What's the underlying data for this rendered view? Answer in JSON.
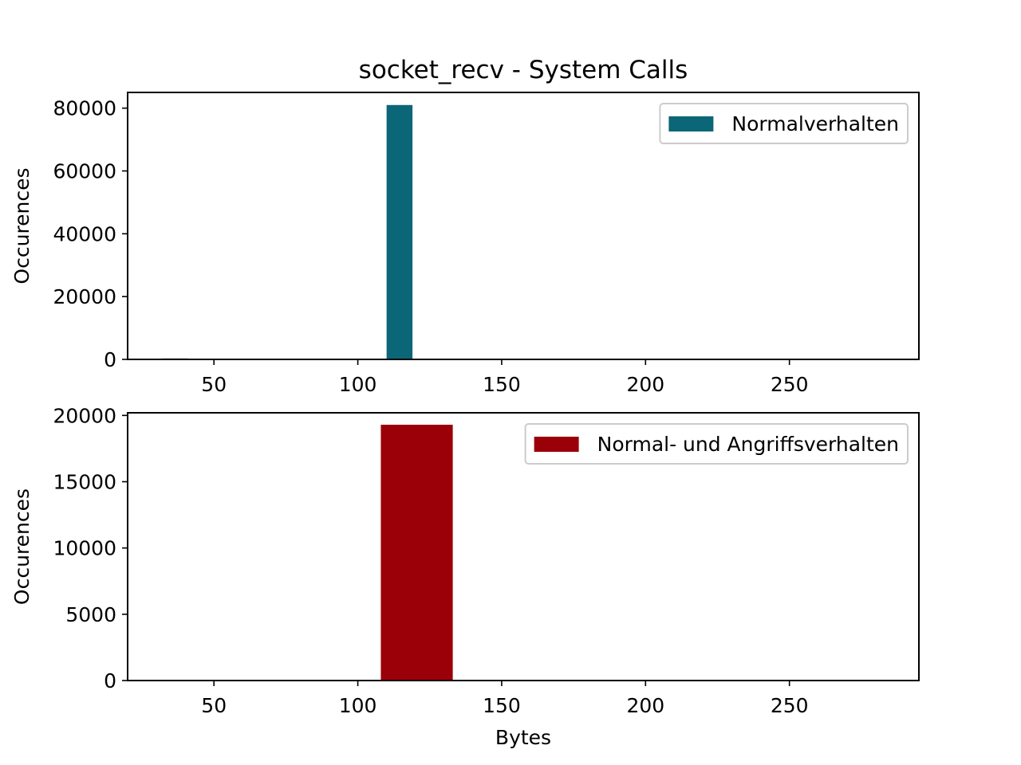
{
  "figure": {
    "title": "socket_recv - System Calls"
  },
  "chart_data": [
    {
      "type": "bar",
      "title": "socket_recv - System Calls",
      "xlabel": "",
      "ylabel": "Occurences",
      "xlim": [
        20,
        295
      ],
      "ylim": [
        0,
        85000
      ],
      "xticks": [
        50,
        100,
        150,
        200,
        250
      ],
      "yticks": [
        0,
        20000,
        40000,
        60000,
        80000
      ],
      "grid": false,
      "legend_position": "top-right",
      "series": [
        {
          "name": "Normalverhalten",
          "color": "#0b6677",
          "bins": [
            {
              "x0": 32,
              "x1": 41,
              "value": 300
            },
            {
              "x0": 110,
              "x1": 119,
              "value": 81000
            }
          ]
        }
      ]
    },
    {
      "type": "bar",
      "title": "",
      "xlabel": "Bytes",
      "ylabel": "Occurences",
      "xlim": [
        20,
        295
      ],
      "ylim": [
        0,
        20200
      ],
      "xticks": [
        50,
        100,
        150,
        200,
        250
      ],
      "yticks": [
        0,
        5000,
        10000,
        15000,
        20000
      ],
      "grid": false,
      "legend_position": "top-right",
      "series": [
        {
          "name": "Normal- und Angriffsverhalten",
          "color": "#9b0008",
          "bins": [
            {
              "x0": 32,
              "x1": 57,
              "value": 60
            },
            {
              "x0": 108,
              "x1": 133,
              "value": 19300
            },
            {
              "x0": 233,
              "x1": 283,
              "value": 60
            }
          ]
        }
      ]
    }
  ]
}
